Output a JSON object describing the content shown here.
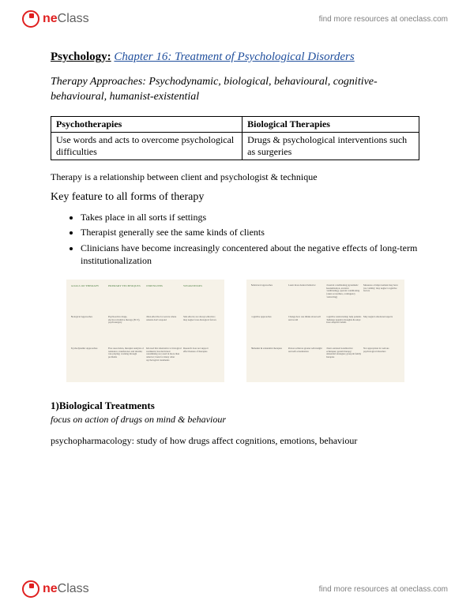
{
  "brand": {
    "one": "ne",
    "class": "Class"
  },
  "header_link": "find more resources at oneclass.com",
  "footer_link": "find more resources at oneclass.com",
  "title": {
    "subject": "Psychology",
    "chapter": "Chapter 16: Treatment of Psychological Disorders"
  },
  "approaches": "Therapy Approaches: Psychodynamic, biological, behavioural, cognitive-behavioural, humanist-existential",
  "table": {
    "headers": [
      "Psychotherapies",
      "Biological Therapies"
    ],
    "row": [
      "Use words and acts to overcome psychological difficulties",
      "Drugs & psychological interventions such as surgeries"
    ]
  },
  "relationship_text": "Therapy is a relationship between client and psychologist & technique",
  "key_feature_heading": "Key feature to all forms of therapy",
  "bullets": [
    "Takes place in all sorts if settings",
    "Therapist generally see the same kinds of clients",
    "Clinicians have become increasingly concentered about the negative effects of long-term institutionalization"
  ],
  "diagram_left": {
    "headers": [
      "GOALS OF THERAPY",
      "PRIMARY TECHNIQUES",
      "STRENGTHS",
      "WEAKNESSES"
    ],
    "rows": [
      [
        "Biological Approaches",
        "Improve structural or biochemical factors to reduce symptoms",
        "Psychoactive drugs, electroconvulsive therapy (ECT), psychosurgery",
        "Often effective for severe where patients don't respond",
        "Side effects; not always effective; may neglect non-biological factors"
      ],
      [
        "Psychodynamic Approaches",
        "Discover source of conflicts and resolve them",
        "Free association, therapist analysis of resistance, transference and dreams; role playing; working through problems",
        "Allowed first alternative to biological treatments; has motivated reexamining as rooted in more than behavior; basis for many other psychological treatments",
        "Research does not support effectiveness of therapies"
      ]
    ]
  },
  "diagram_right": {
    "rows": [
      [
        "Behavioral approaches",
        "Learn more desired behavior",
        "Classical conditioning (systematic desensitization, aversive conditioning), operant conditioning (token economies, contingency contracting)",
        "Effective for narrowly defined problems (phobias, compulsions)",
        "Measures of improvement may have low validity; may neglect cognitive factors"
      ],
      [
        "Cognitive approaches",
        "Change how one thinks about self and world",
        "Cognitive restructuring: help patients challenge negative thoughts & adopt more adaptive beliefs",
        "Effective for many types of psychological problems",
        "May neglect emotional aspects"
      ],
      [
        "Humanist & existential therapies",
        "Person achieves greater self-insight and self-actualization",
        "Client-centered nondirective techniques; gestalt therapy; existential strategies; group & family therapies",
        "Emphasizes growth & potential; listening skills widely used now",
        "Not appropriate for serious psychological disorders"
      ]
    ]
  },
  "section1": {
    "heading": "1)Biological Treatments",
    "sub": "focus on action of drugs on mind & behaviour",
    "text": "psychopharmacology: study of how drugs affect cognitions, emotions, behaviour"
  },
  "colors": {
    "brand_red": "#e02020",
    "brand_gray": "#606060",
    "link_gray": "#808080",
    "chapter_blue": "#1f4e9c",
    "diagram_bg": "#f6f2e8",
    "diagram_header": "#7a9e6e"
  }
}
